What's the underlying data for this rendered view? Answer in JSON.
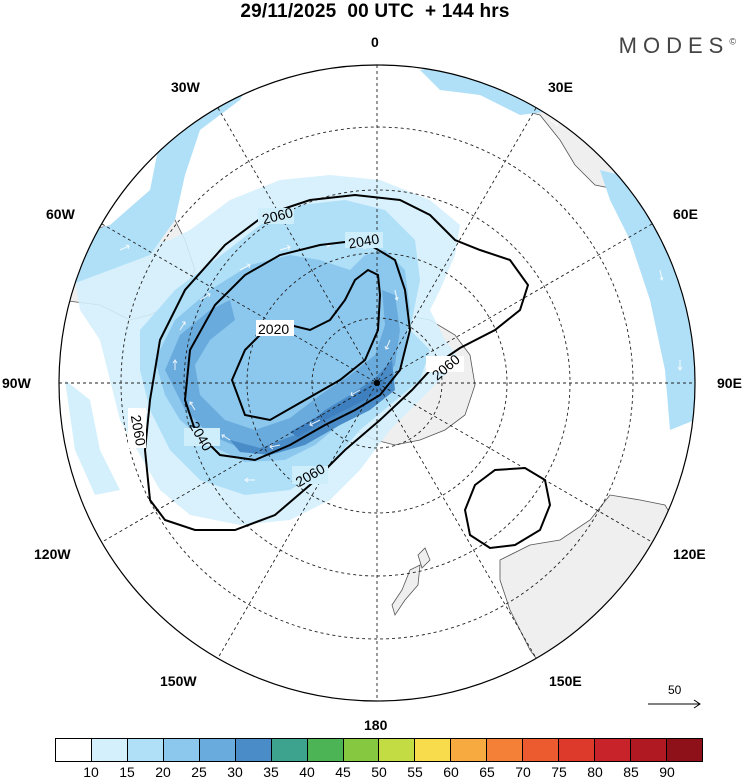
{
  "title": "29/11/2025  00 UTC  + 144 hrs",
  "brand": "MODES",
  "brand_mark": "©",
  "longitudes": {
    "top": "0",
    "bottom": "180",
    "left": "90W",
    "right": "90E",
    "w30": "30W",
    "e30": "30E",
    "w60": "60W",
    "e60": "60E",
    "w120": "120W",
    "e120": "120E",
    "w150": "150W",
    "e150": "150E"
  },
  "contour_labels": [
    "2060",
    "2040",
    "2020",
    "2060",
    "2040",
    "2060",
    "2060"
  ],
  "scale_arrow_label": "50",
  "colorbar": {
    "colors": [
      "#ffffff",
      "#d4f0fc",
      "#b0e0f8",
      "#8cc8ee",
      "#6aabde",
      "#4a8cc8",
      "#3da38e",
      "#4cb454",
      "#86c840",
      "#c4dc44",
      "#f8dc4c",
      "#f6aa40",
      "#f48038",
      "#ec5a30",
      "#de3a2c",
      "#c8222a",
      "#b01822",
      "#8e1018"
    ],
    "labels": [
      "10",
      "15",
      "20",
      "25",
      "30",
      "35",
      "40",
      "45",
      "50",
      "55",
      "60",
      "65",
      "70",
      "75",
      "80",
      "85",
      "90"
    ]
  }
}
